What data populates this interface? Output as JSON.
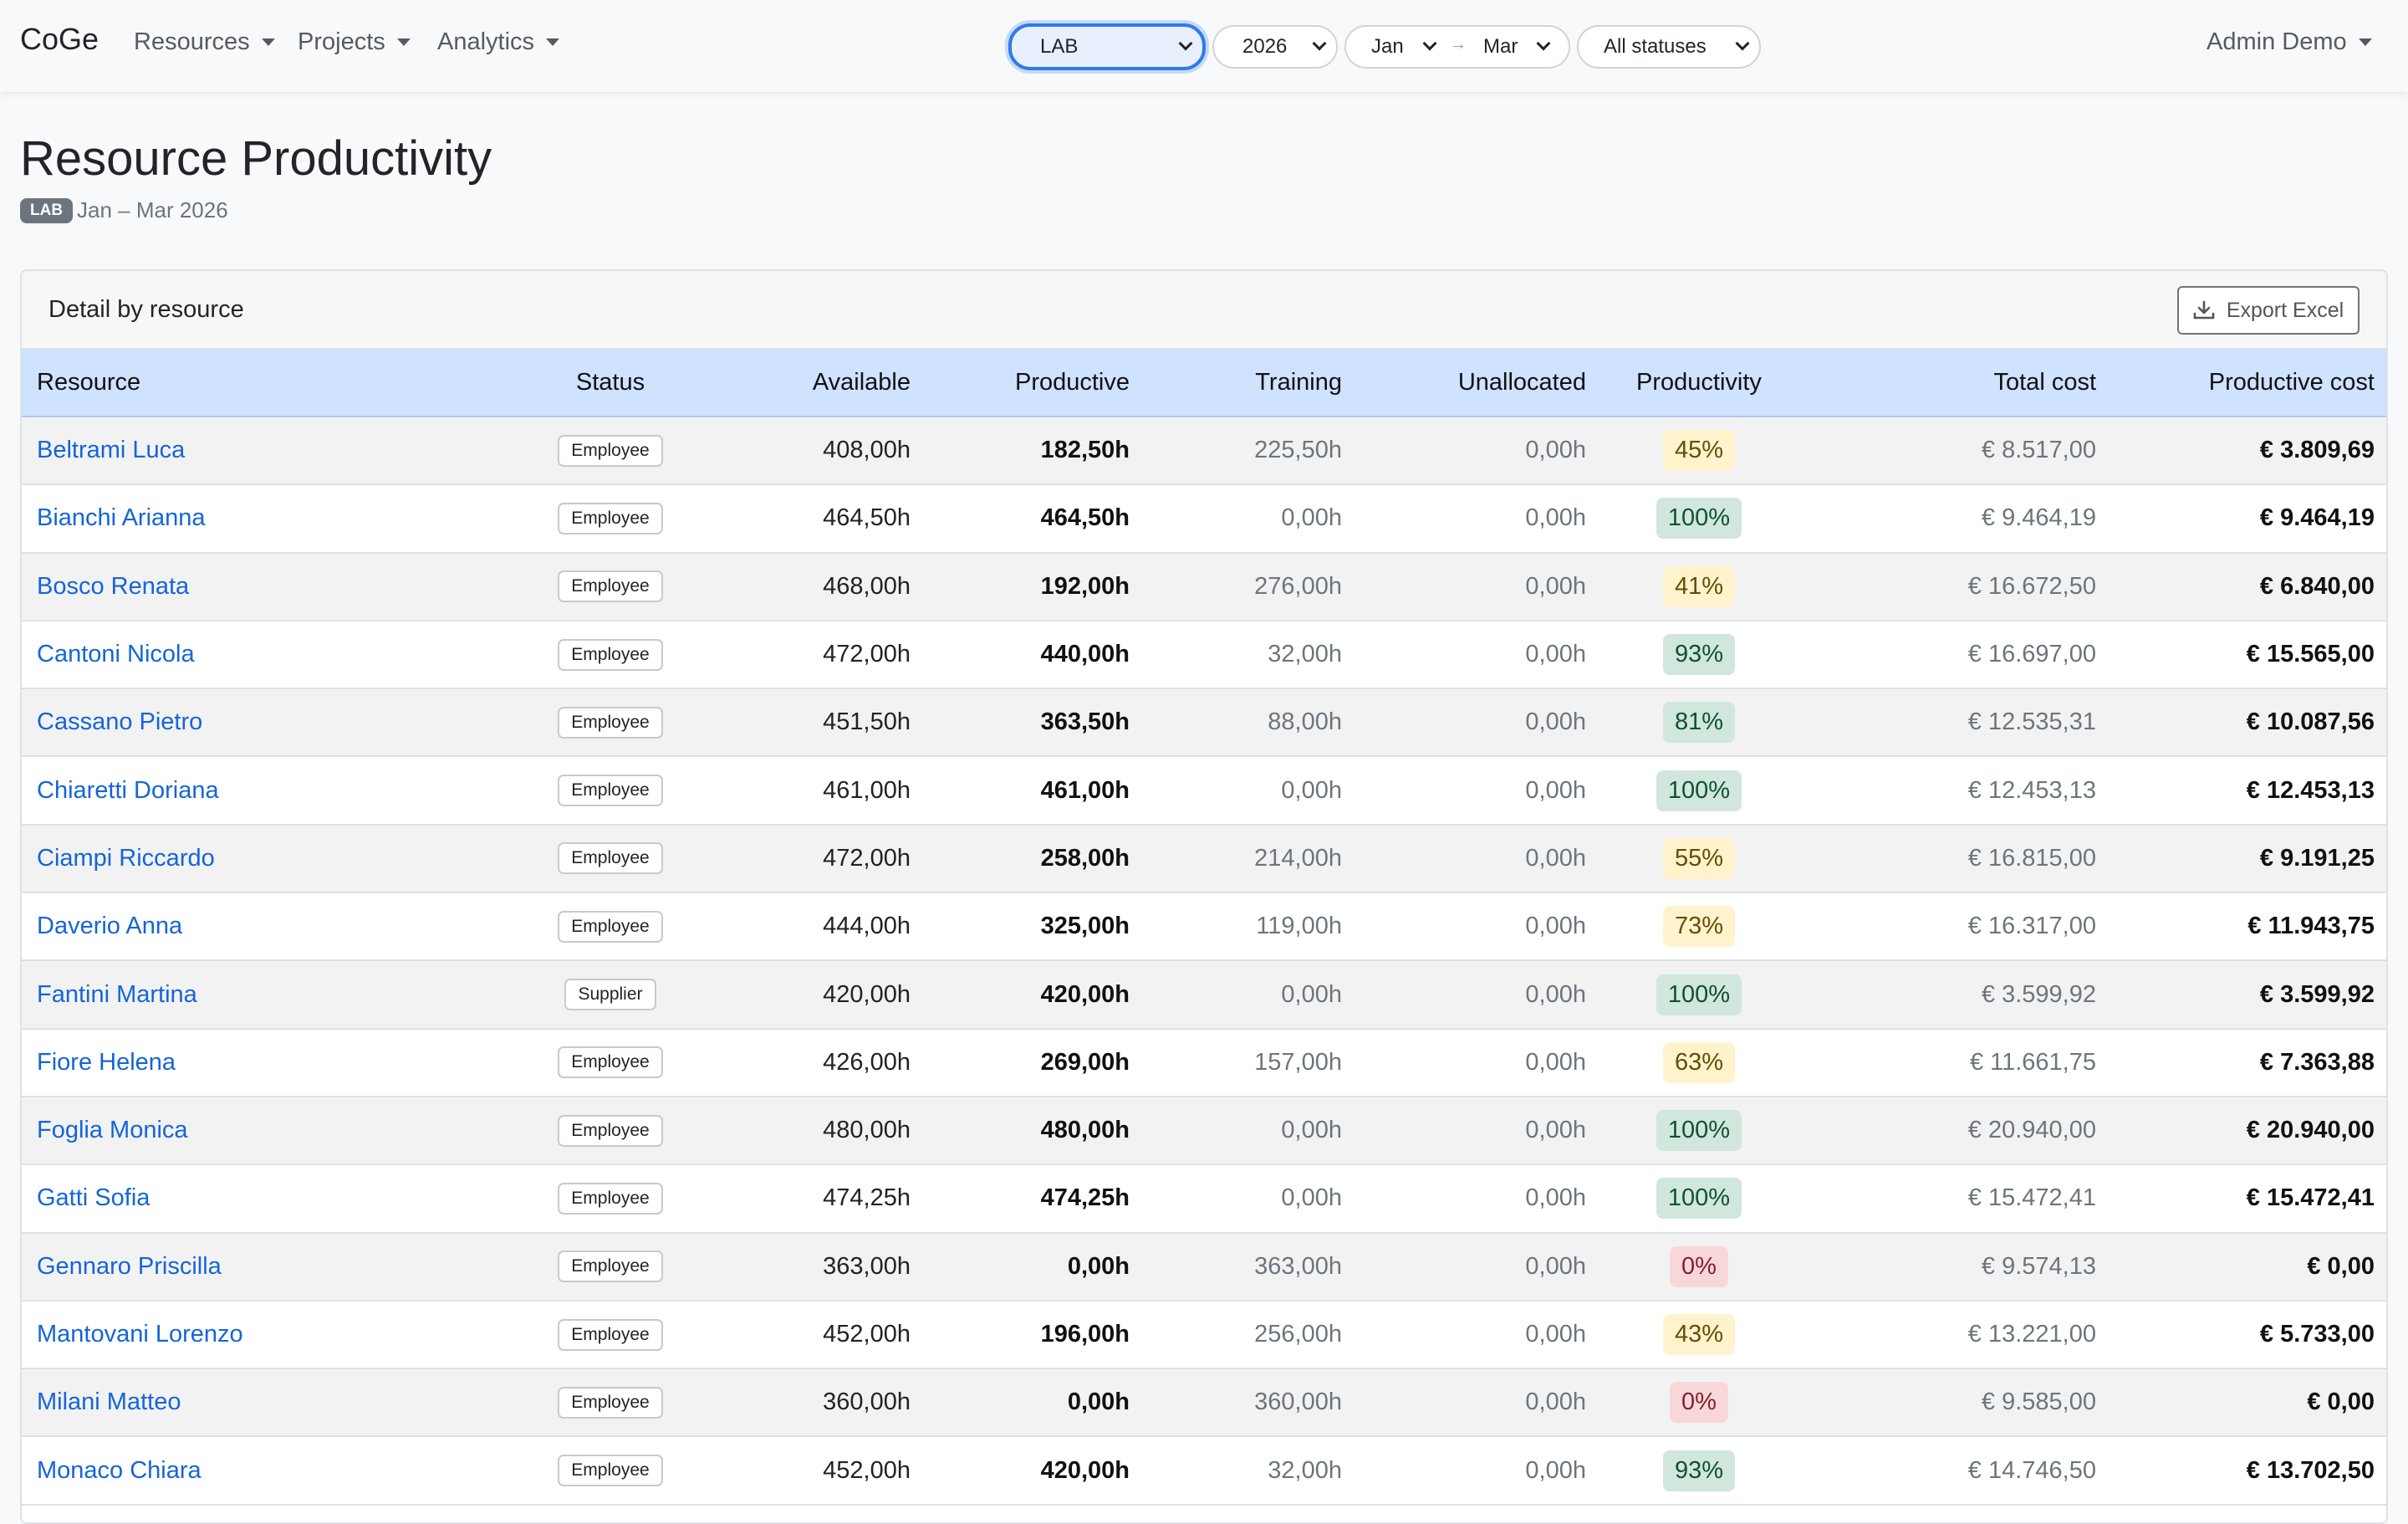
{
  "navbar": {
    "brand": "CoGe",
    "menus": [
      {
        "label": "Resources"
      },
      {
        "label": "Projects"
      },
      {
        "label": "Analytics"
      }
    ],
    "filters": {
      "unit": "LAB",
      "year": "2026",
      "month_from": "Jan",
      "month_to": "Mar",
      "status": "All statuses"
    },
    "arrow": "→",
    "user": "Admin Demo"
  },
  "header": {
    "title": "Resource Productivity",
    "badge": "LAB",
    "period": "Jan – Mar 2026"
  },
  "card": {
    "title": "Detail by resource",
    "export_label": "Export Excel"
  },
  "table": {
    "columns": [
      "Resource",
      "Status",
      "Available",
      "Productive",
      "Training",
      "Unallocated",
      "Productivity",
      "Total cost",
      "Productive cost"
    ],
    "rows": [
      {
        "name": "Beltrami Luca",
        "status": "Employee",
        "available": "408,00h",
        "productive": "182,50h",
        "training": "225,50h",
        "unallocated": "0,00h",
        "productivity": "45%",
        "level": "yellow",
        "total_cost": "€ 8.517,00",
        "productive_cost": "€ 3.809,69"
      },
      {
        "name": "Bianchi Arianna",
        "status": "Employee",
        "available": "464,50h",
        "productive": "464,50h",
        "training": "0,00h",
        "unallocated": "0,00h",
        "productivity": "100%",
        "level": "green",
        "total_cost": "€ 9.464,19",
        "productive_cost": "€ 9.464,19"
      },
      {
        "name": "Bosco Renata",
        "status": "Employee",
        "available": "468,00h",
        "productive": "192,00h",
        "training": "276,00h",
        "unallocated": "0,00h",
        "productivity": "41%",
        "level": "yellow",
        "total_cost": "€ 16.672,50",
        "productive_cost": "€ 6.840,00"
      },
      {
        "name": "Cantoni Nicola",
        "status": "Employee",
        "available": "472,00h",
        "productive": "440,00h",
        "training": "32,00h",
        "unallocated": "0,00h",
        "productivity": "93%",
        "level": "green",
        "total_cost": "€ 16.697,00",
        "productive_cost": "€ 15.565,00"
      },
      {
        "name": "Cassano Pietro",
        "status": "Employee",
        "available": "451,50h",
        "productive": "363,50h",
        "training": "88,00h",
        "unallocated": "0,00h",
        "productivity": "81%",
        "level": "green",
        "total_cost": "€ 12.535,31",
        "productive_cost": "€ 10.087,56"
      },
      {
        "name": "Chiaretti Doriana",
        "status": "Employee",
        "available": "461,00h",
        "productive": "461,00h",
        "training": "0,00h",
        "unallocated": "0,00h",
        "productivity": "100%",
        "level": "green",
        "total_cost": "€ 12.453,13",
        "productive_cost": "€ 12.453,13"
      },
      {
        "name": "Ciampi Riccardo",
        "status": "Employee",
        "available": "472,00h",
        "productive": "258,00h",
        "training": "214,00h",
        "unallocated": "0,00h",
        "productivity": "55%",
        "level": "yellow",
        "total_cost": "€ 16.815,00",
        "productive_cost": "€ 9.191,25"
      },
      {
        "name": "Daverio Anna",
        "status": "Employee",
        "available": "444,00h",
        "productive": "325,00h",
        "training": "119,00h",
        "unallocated": "0,00h",
        "productivity": "73%",
        "level": "yellow",
        "total_cost": "€ 16.317,00",
        "productive_cost": "€ 11.943,75"
      },
      {
        "name": "Fantini Martina",
        "status": "Supplier",
        "available": "420,00h",
        "productive": "420,00h",
        "training": "0,00h",
        "unallocated": "0,00h",
        "productivity": "100%",
        "level": "green",
        "total_cost": "€ 3.599,92",
        "productive_cost": "€ 3.599,92"
      },
      {
        "name": "Fiore Helena",
        "status": "Employee",
        "available": "426,00h",
        "productive": "269,00h",
        "training": "157,00h",
        "unallocated": "0,00h",
        "productivity": "63%",
        "level": "yellow",
        "total_cost": "€ 11.661,75",
        "productive_cost": "€ 7.363,88"
      },
      {
        "name": "Foglia Monica",
        "status": "Employee",
        "available": "480,00h",
        "productive": "480,00h",
        "training": "0,00h",
        "unallocated": "0,00h",
        "productivity": "100%",
        "level": "green",
        "total_cost": "€ 20.940,00",
        "productive_cost": "€ 20.940,00"
      },
      {
        "name": "Gatti Sofia",
        "status": "Employee",
        "available": "474,25h",
        "productive": "474,25h",
        "training": "0,00h",
        "unallocated": "0,00h",
        "productivity": "100%",
        "level": "green",
        "total_cost": "€ 15.472,41",
        "productive_cost": "€ 15.472,41"
      },
      {
        "name": "Gennaro Priscilla",
        "status": "Employee",
        "available": "363,00h",
        "productive": "0,00h",
        "training": "363,00h",
        "unallocated": "0,00h",
        "productivity": "0%",
        "level": "red",
        "total_cost": "€ 9.574,13",
        "productive_cost": "€ 0,00"
      },
      {
        "name": "Mantovani Lorenzo",
        "status": "Employee",
        "available": "452,00h",
        "productive": "196,00h",
        "training": "256,00h",
        "unallocated": "0,00h",
        "productivity": "43%",
        "level": "yellow",
        "total_cost": "€ 13.221,00",
        "productive_cost": "€ 5.733,00"
      },
      {
        "name": "Milani Matteo",
        "status": "Employee",
        "available": "360,00h",
        "productive": "0,00h",
        "training": "360,00h",
        "unallocated": "0,00h",
        "productivity": "0%",
        "level": "red",
        "total_cost": "€ 9.585,00",
        "productive_cost": "€ 0,00"
      },
      {
        "name": "Monaco Chiara",
        "status": "Employee",
        "available": "452,00h",
        "productive": "420,00h",
        "training": "32,00h",
        "unallocated": "0,00h",
        "productivity": "93%",
        "level": "green",
        "total_cost": "€ 14.746,50",
        "productive_cost": "€ 13.702,50"
      }
    ]
  }
}
